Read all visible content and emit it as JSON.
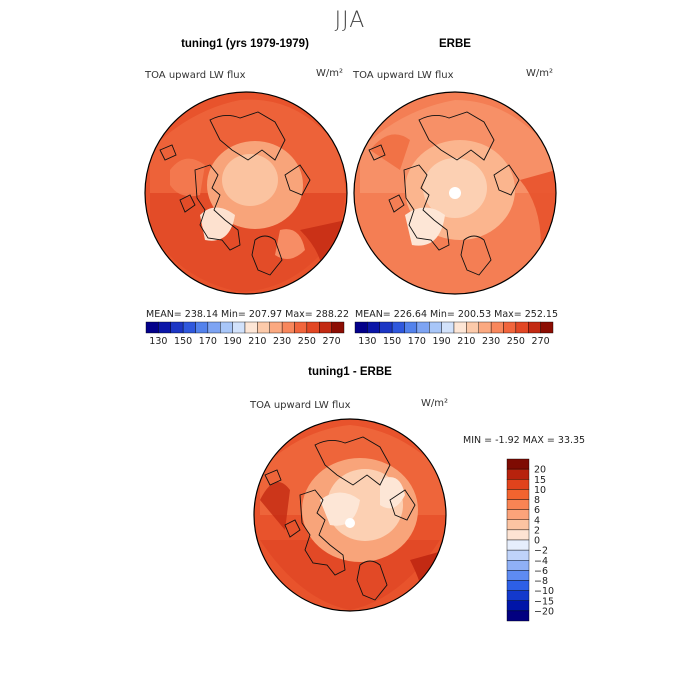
{
  "figure": {
    "title": "JJA"
  },
  "palettes": {
    "absolute": [
      "#03008a",
      "#0b16a8",
      "#1c36c4",
      "#2f58dd",
      "#5382ec",
      "#7ea4f3",
      "#a8c6f8",
      "#d2e2fb",
      "#fde6d6",
      "#fccaaa",
      "#fba981",
      "#f8875c",
      "#f1653c",
      "#e24724",
      "#c32a13",
      "#8c0d03"
    ],
    "difference": [
      "#020080",
      "#0015a8",
      "#1339cc",
      "#2d5fe6",
      "#5e8bf2",
      "#8fb0f6",
      "#bfd3fa",
      "#e6eefc",
      "#fde3d3",
      "#fcc4a2",
      "#fba37a",
      "#f98454",
      "#f2642f",
      "#e1431c",
      "#b7220d",
      "#7e0b02"
    ]
  },
  "chart_data": [
    {
      "type": "heatmap",
      "title": "tuning1 (yrs 1979-1979)",
      "variable": "TOA upward LW flux",
      "units": "W/m²",
      "stats": {
        "mean": 238.14,
        "min": 207.97,
        "max": 288.22
      },
      "stats_text": "MEAN= 238.14   Min= 207.97   Max= 288.22",
      "colorbar": {
        "tick_labels": [
          "130",
          "150",
          "170",
          "190",
          "210",
          "230",
          "250",
          "270"
        ],
        "range": [
          130,
          290
        ]
      }
    },
    {
      "type": "heatmap",
      "title": "ERBE",
      "variable": "TOA upward LW flux",
      "units": "W/m²",
      "stats": {
        "mean": 226.64,
        "min": 200.53,
        "max": 252.15
      },
      "stats_text": "MEAN= 226.64   Min= 200.53   Max= 252.15",
      "colorbar": {
        "tick_labels": [
          "130",
          "150",
          "170",
          "190",
          "210",
          "230",
          "250",
          "270"
        ],
        "range": [
          130,
          290
        ]
      }
    },
    {
      "type": "heatmap",
      "title": "tuning1 - ERBE",
      "variable": "TOA upward LW flux",
      "units": "W/m²",
      "stats": {
        "min": -1.92,
        "max": 33.35
      },
      "stats_text": "MIN =   -1.92  MAX =   33.35",
      "colorbar": {
        "tick_labels": [
          "20",
          "15",
          "10",
          "8",
          "6",
          "4",
          "2",
          "0",
          "−2",
          "−4",
          "−6",
          "−8",
          "−10",
          "−15",
          "−20"
        ]
      }
    }
  ]
}
